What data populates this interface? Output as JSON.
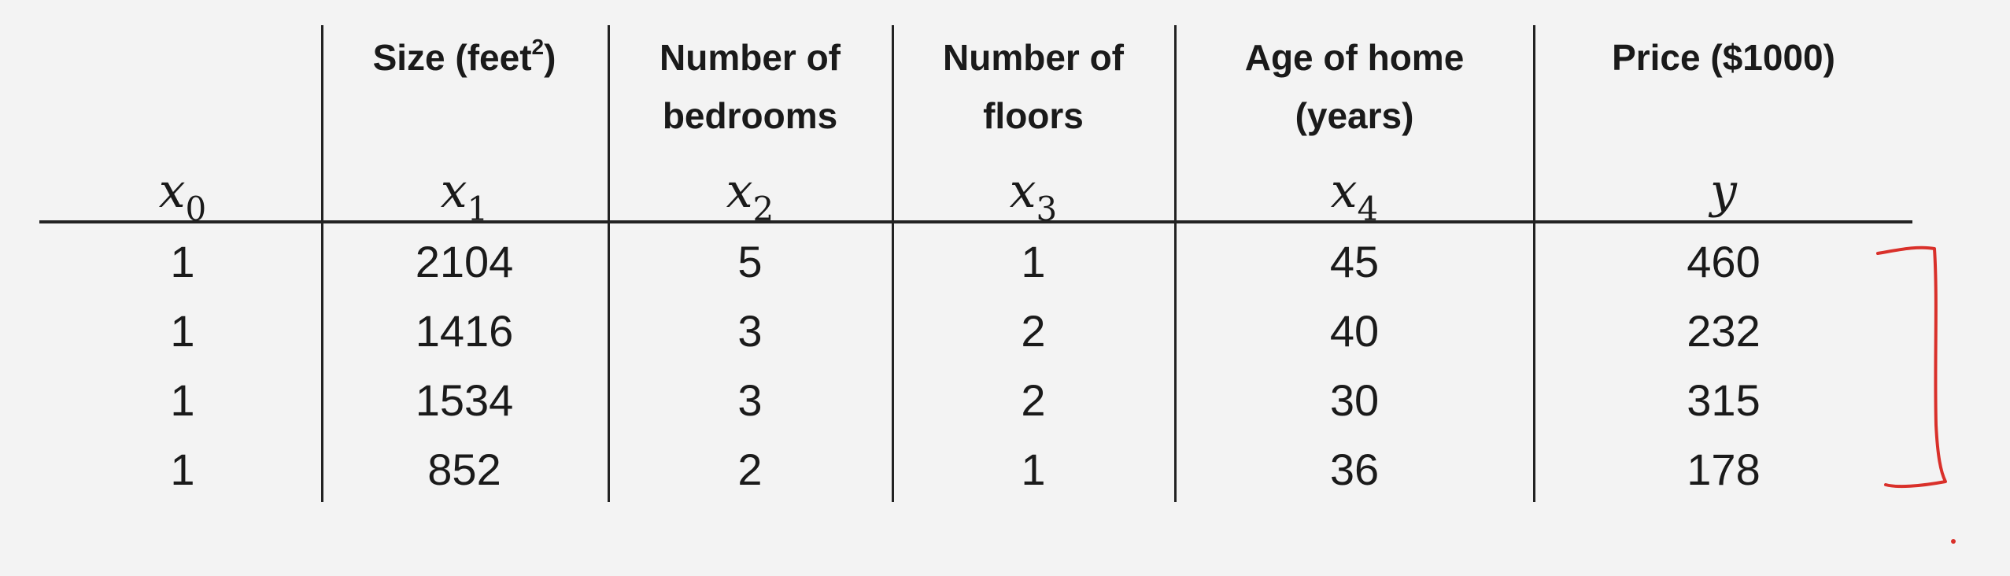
{
  "table": {
    "columns": [
      {
        "header": [
          "",
          ""
        ],
        "var": "x",
        "sub": "0"
      },
      {
        "header": [
          "Size (feet",
          ""
        ],
        "sup": "2",
        "header_tail": ")",
        "var": "x",
        "sub": "1"
      },
      {
        "header": [
          "Number of",
          "bedrooms"
        ],
        "var": "x",
        "sub": "2"
      },
      {
        "header": [
          "Number of",
          "floors"
        ],
        "var": "x",
        "sub": "3"
      },
      {
        "header": [
          "Age of home",
          "(years)"
        ],
        "var": "x",
        "sub": "4"
      },
      {
        "header": [
          "Price ($1000)",
          ""
        ],
        "var": "y",
        "sub": ""
      }
    ],
    "rows": [
      [
        "1",
        "2104",
        "5",
        "1",
        "45",
        "460"
      ],
      [
        "1",
        "1416",
        "3",
        "2",
        "40",
        "232"
      ],
      [
        "1",
        "1534",
        "3",
        "2",
        "30",
        "315"
      ],
      [
        "1",
        "852",
        "2",
        "1",
        "36",
        "178"
      ]
    ]
  },
  "annotation": {
    "ink_color": "#d9302a"
  }
}
